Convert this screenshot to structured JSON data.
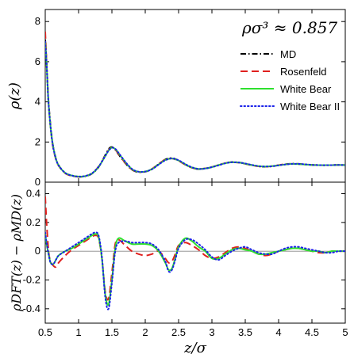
{
  "chart_data": [
    {
      "type": "line",
      "panel": "top",
      "ylabel": "ρ(z)",
      "xlim": [
        0.5,
        5
      ],
      "ylim": [
        0,
        8.6
      ],
      "yticks": [
        "0",
        "2",
        "4",
        "6",
        "8"
      ],
      "grid": false,
      "legend_position": "top-right",
      "annotation": "ρσ³ ≈ 0.857",
      "series": [
        {
          "name": "MD",
          "color": "#000000",
          "style": "dashdot",
          "x": [
            0.5,
            0.52,
            0.55,
            0.6,
            0.65,
            0.7,
            0.8,
            0.9,
            1.0,
            1.1,
            1.2,
            1.3,
            1.4,
            1.45,
            1.5,
            1.55,
            1.6,
            1.7,
            1.8,
            1.9,
            2.0,
            2.1,
            2.2,
            2.3,
            2.4,
            2.5,
            2.6,
            2.7,
            2.8,
            2.9,
            3.0,
            3.1,
            3.2,
            3.3,
            3.4,
            3.5,
            3.6,
            3.7,
            3.8,
            3.9,
            4.0,
            4.1,
            4.2,
            4.3,
            4.4,
            4.5,
            4.6,
            4.7,
            4.8,
            4.9,
            5.0
          ],
          "y": [
            7.1,
            6.0,
            4.0,
            2.2,
            1.3,
            0.85,
            0.45,
            0.32,
            0.27,
            0.29,
            0.42,
            0.75,
            1.35,
            1.65,
            1.75,
            1.62,
            1.38,
            0.95,
            0.62,
            0.5,
            0.52,
            0.65,
            0.9,
            1.13,
            1.2,
            1.08,
            0.88,
            0.72,
            0.65,
            0.68,
            0.75,
            0.85,
            0.95,
            1.0,
            0.98,
            0.92,
            0.85,
            0.79,
            0.77,
            0.79,
            0.84,
            0.89,
            0.92,
            0.91,
            0.88,
            0.86,
            0.85,
            0.84,
            0.85,
            0.86,
            0.85
          ]
        },
        {
          "name": "Rosenfeld",
          "color": "#e0201e",
          "style": "dashed",
          "x": [
            0.5,
            0.52,
            0.55,
            0.6,
            0.65,
            0.7,
            0.8,
            0.9,
            1.0,
            1.1,
            1.2,
            1.3,
            1.4,
            1.45,
            1.5,
            1.55,
            1.6,
            1.7,
            1.8,
            1.9,
            2.0,
            2.1,
            2.2,
            2.3,
            2.4,
            2.5,
            2.6,
            2.7,
            2.8,
            2.9,
            3.0,
            3.1,
            3.2,
            3.3,
            3.4,
            3.5,
            3.6,
            3.7,
            3.8,
            3.9,
            4.0,
            4.1,
            4.2,
            4.3,
            4.4,
            4.5,
            4.6,
            4.7,
            4.8,
            4.9,
            5.0
          ],
          "y": [
            7.5,
            6.0,
            3.9,
            2.1,
            1.25,
            0.82,
            0.44,
            0.31,
            0.27,
            0.3,
            0.44,
            0.78,
            1.32,
            1.6,
            1.72,
            1.62,
            1.4,
            0.96,
            0.63,
            0.51,
            0.53,
            0.66,
            0.91,
            1.12,
            1.18,
            1.06,
            0.87,
            0.72,
            0.66,
            0.69,
            0.76,
            0.86,
            0.95,
            0.99,
            0.97,
            0.91,
            0.84,
            0.79,
            0.77,
            0.8,
            0.85,
            0.89,
            0.91,
            0.9,
            0.88,
            0.86,
            0.85,
            0.85,
            0.85,
            0.86,
            0.85
          ]
        },
        {
          "name": "White Bear",
          "color": "#2ee02e",
          "style": "solid",
          "x": [
            0.5,
            0.52,
            0.55,
            0.6,
            0.65,
            0.7,
            0.8,
            0.9,
            1.0,
            1.1,
            1.2,
            1.3,
            1.4,
            1.45,
            1.5,
            1.55,
            1.6,
            1.7,
            1.8,
            1.9,
            2.0,
            2.1,
            2.2,
            2.3,
            2.4,
            2.5,
            2.6,
            2.7,
            2.8,
            2.9,
            3.0,
            3.1,
            3.2,
            3.3,
            3.4,
            3.5,
            3.6,
            3.7,
            3.8,
            3.9,
            4.0,
            4.1,
            4.2,
            4.3,
            4.4,
            4.5,
            4.6,
            4.7,
            4.8,
            4.9,
            5.0
          ],
          "y": [
            7.0,
            5.9,
            3.9,
            2.15,
            1.28,
            0.84,
            0.46,
            0.33,
            0.28,
            0.3,
            0.43,
            0.76,
            1.3,
            1.58,
            1.72,
            1.65,
            1.45,
            1.0,
            0.65,
            0.52,
            0.53,
            0.65,
            0.88,
            1.1,
            1.18,
            1.08,
            0.89,
            0.73,
            0.66,
            0.68,
            0.75,
            0.85,
            0.94,
            0.99,
            0.98,
            0.92,
            0.85,
            0.8,
            0.78,
            0.8,
            0.84,
            0.88,
            0.91,
            0.9,
            0.88,
            0.86,
            0.85,
            0.85,
            0.85,
            0.86,
            0.85
          ]
        },
        {
          "name": "White Bear II",
          "color": "#1a22e8",
          "style": "dotted",
          "x": [
            0.5,
            0.52,
            0.55,
            0.6,
            0.65,
            0.7,
            0.8,
            0.9,
            1.0,
            1.1,
            1.2,
            1.3,
            1.4,
            1.45,
            1.5,
            1.55,
            1.6,
            1.7,
            1.8,
            1.9,
            2.0,
            2.1,
            2.2,
            2.3,
            2.4,
            2.5,
            2.6,
            2.7,
            2.8,
            2.9,
            3.0,
            3.1,
            3.2,
            3.3,
            3.4,
            3.5,
            3.6,
            3.7,
            3.8,
            3.9,
            4.0,
            4.1,
            4.2,
            4.3,
            4.4,
            4.5,
            4.6,
            4.7,
            4.8,
            4.9,
            5.0
          ],
          "y": [
            7.0,
            5.9,
            3.9,
            2.15,
            1.28,
            0.84,
            0.46,
            0.33,
            0.28,
            0.31,
            0.44,
            0.77,
            1.3,
            1.57,
            1.71,
            1.66,
            1.46,
            1.02,
            0.66,
            0.52,
            0.53,
            0.64,
            0.87,
            1.09,
            1.18,
            1.09,
            0.9,
            0.74,
            0.66,
            0.68,
            0.75,
            0.84,
            0.94,
            0.99,
            0.98,
            0.93,
            0.86,
            0.8,
            0.78,
            0.79,
            0.84,
            0.88,
            0.91,
            0.91,
            0.89,
            0.86,
            0.85,
            0.85,
            0.85,
            0.86,
            0.85
          ]
        }
      ]
    },
    {
      "type": "line",
      "panel": "bottom",
      "ylabel": "ρDFT(z) − ρMD(z)",
      "xlabel": "z/σ",
      "xlim": [
        0.5,
        5
      ],
      "ylim": [
        -0.5,
        0.48
      ],
      "xticks": [
        "0.5",
        "1",
        "1.5",
        "2",
        "2.5",
        "3",
        "3.5",
        "4",
        "4.5",
        "5"
      ],
      "yticks": [
        "-0.4",
        "-0.2",
        "0",
        "0.2",
        "0.4"
      ],
      "zero_line": true,
      "grid": false,
      "series": [
        {
          "name": "Rosenfeld",
          "color": "#e0201e",
          "style": "dashed",
          "x": [
            0.5,
            0.52,
            0.55,
            0.58,
            0.62,
            0.66,
            0.7,
            0.8,
            0.9,
            1.0,
            1.1,
            1.2,
            1.25,
            1.3,
            1.35,
            1.4,
            1.45,
            1.5,
            1.55,
            1.6,
            1.7,
            1.8,
            1.9,
            2.0,
            2.1,
            2.2,
            2.3,
            2.35,
            2.4,
            2.45,
            2.5,
            2.6,
            2.7,
            2.8,
            2.9,
            3.0,
            3.1,
            3.2,
            3.3,
            3.4,
            3.5,
            3.6,
            3.7,
            3.8,
            3.9,
            4.0,
            4.1,
            4.2,
            4.3,
            4.4,
            4.5,
            4.6,
            4.7,
            4.8,
            4.9,
            5.0
          ],
          "y": [
            0.38,
            0.2,
            0.0,
            -0.07,
            -0.1,
            -0.11,
            -0.08,
            -0.03,
            0.01,
            0.04,
            0.07,
            0.1,
            0.11,
            0.09,
            -0.05,
            -0.28,
            -0.33,
            -0.15,
            0.05,
            0.08,
            0.04,
            0.0,
            -0.02,
            -0.03,
            -0.02,
            0.0,
            -0.05,
            -0.08,
            -0.07,
            -0.02,
            0.04,
            0.06,
            0.04,
            0.01,
            -0.03,
            -0.05,
            -0.04,
            -0.01,
            0.02,
            0.03,
            0.02,
            0.0,
            -0.02,
            -0.03,
            -0.02,
            0.0,
            0.01,
            0.02,
            0.02,
            0.01,
            0.0,
            -0.01,
            -0.01,
            0.0,
            0.0,
            0.0
          ]
        },
        {
          "name": "White Bear",
          "color": "#2ee02e",
          "style": "solid",
          "x": [
            0.5,
            0.52,
            0.55,
            0.58,
            0.62,
            0.66,
            0.7,
            0.8,
            0.9,
            1.0,
            1.1,
            1.2,
            1.25,
            1.3,
            1.35,
            1.4,
            1.45,
            1.5,
            1.55,
            1.6,
            1.7,
            1.8,
            1.9,
            2.0,
            2.1,
            2.2,
            2.3,
            2.35,
            2.4,
            2.45,
            2.5,
            2.6,
            2.7,
            2.8,
            2.9,
            3.0,
            3.1,
            3.2,
            3.3,
            3.4,
            3.5,
            3.6,
            3.7,
            3.8,
            3.9,
            4.0,
            4.1,
            4.2,
            4.3,
            4.4,
            4.5,
            4.6,
            4.7,
            4.8,
            4.9,
            5.0
          ],
          "y": [
            0.12,
            0.05,
            -0.02,
            -0.08,
            -0.09,
            -0.06,
            -0.03,
            0.0,
            0.02,
            0.05,
            0.08,
            0.11,
            0.12,
            0.1,
            -0.05,
            -0.3,
            -0.37,
            -0.2,
            0.02,
            0.09,
            0.07,
            0.05,
            0.05,
            0.05,
            0.04,
            0.0,
            -0.08,
            -0.13,
            -0.12,
            -0.05,
            0.03,
            0.09,
            0.07,
            0.03,
            0.0,
            -0.05,
            -0.05,
            -0.02,
            0.01,
            0.02,
            0.01,
            0.0,
            -0.02,
            -0.02,
            -0.01,
            0.0,
            0.01,
            0.02,
            0.02,
            0.01,
            0.0,
            0.0,
            -0.01,
            0.0,
            0.0,
            0.0
          ]
        },
        {
          "name": "White Bear II",
          "color": "#1a22e8",
          "style": "dotted",
          "x": [
            0.5,
            0.52,
            0.55,
            0.58,
            0.62,
            0.66,
            0.7,
            0.8,
            0.9,
            1.0,
            1.1,
            1.2,
            1.25,
            1.3,
            1.35,
            1.4,
            1.45,
            1.5,
            1.55,
            1.6,
            1.7,
            1.8,
            1.9,
            2.0,
            2.1,
            2.2,
            2.3,
            2.35,
            2.4,
            2.45,
            2.5,
            2.6,
            2.7,
            2.8,
            2.9,
            3.0,
            3.1,
            3.2,
            3.3,
            3.4,
            3.5,
            3.6,
            3.7,
            3.8,
            3.9,
            4.0,
            4.1,
            4.2,
            4.3,
            4.4,
            4.5,
            4.6,
            4.7,
            4.8,
            4.9,
            5.0
          ],
          "y": [
            0.13,
            0.06,
            -0.02,
            -0.08,
            -0.09,
            -0.06,
            -0.03,
            0.0,
            0.03,
            0.06,
            0.09,
            0.12,
            0.13,
            0.11,
            -0.04,
            -0.32,
            -0.4,
            -0.22,
            0.0,
            0.06,
            0.07,
            0.06,
            0.06,
            0.06,
            0.05,
            0.01,
            -0.07,
            -0.14,
            -0.13,
            -0.06,
            0.02,
            0.08,
            0.08,
            0.05,
            0.01,
            -0.04,
            -0.06,
            -0.03,
            0.0,
            0.02,
            0.03,
            0.01,
            -0.01,
            -0.02,
            -0.02,
            0.0,
            0.02,
            0.03,
            0.03,
            0.02,
            0.01,
            0.0,
            -0.01,
            -0.01,
            0.0,
            0.0
          ]
        }
      ]
    }
  ]
}
